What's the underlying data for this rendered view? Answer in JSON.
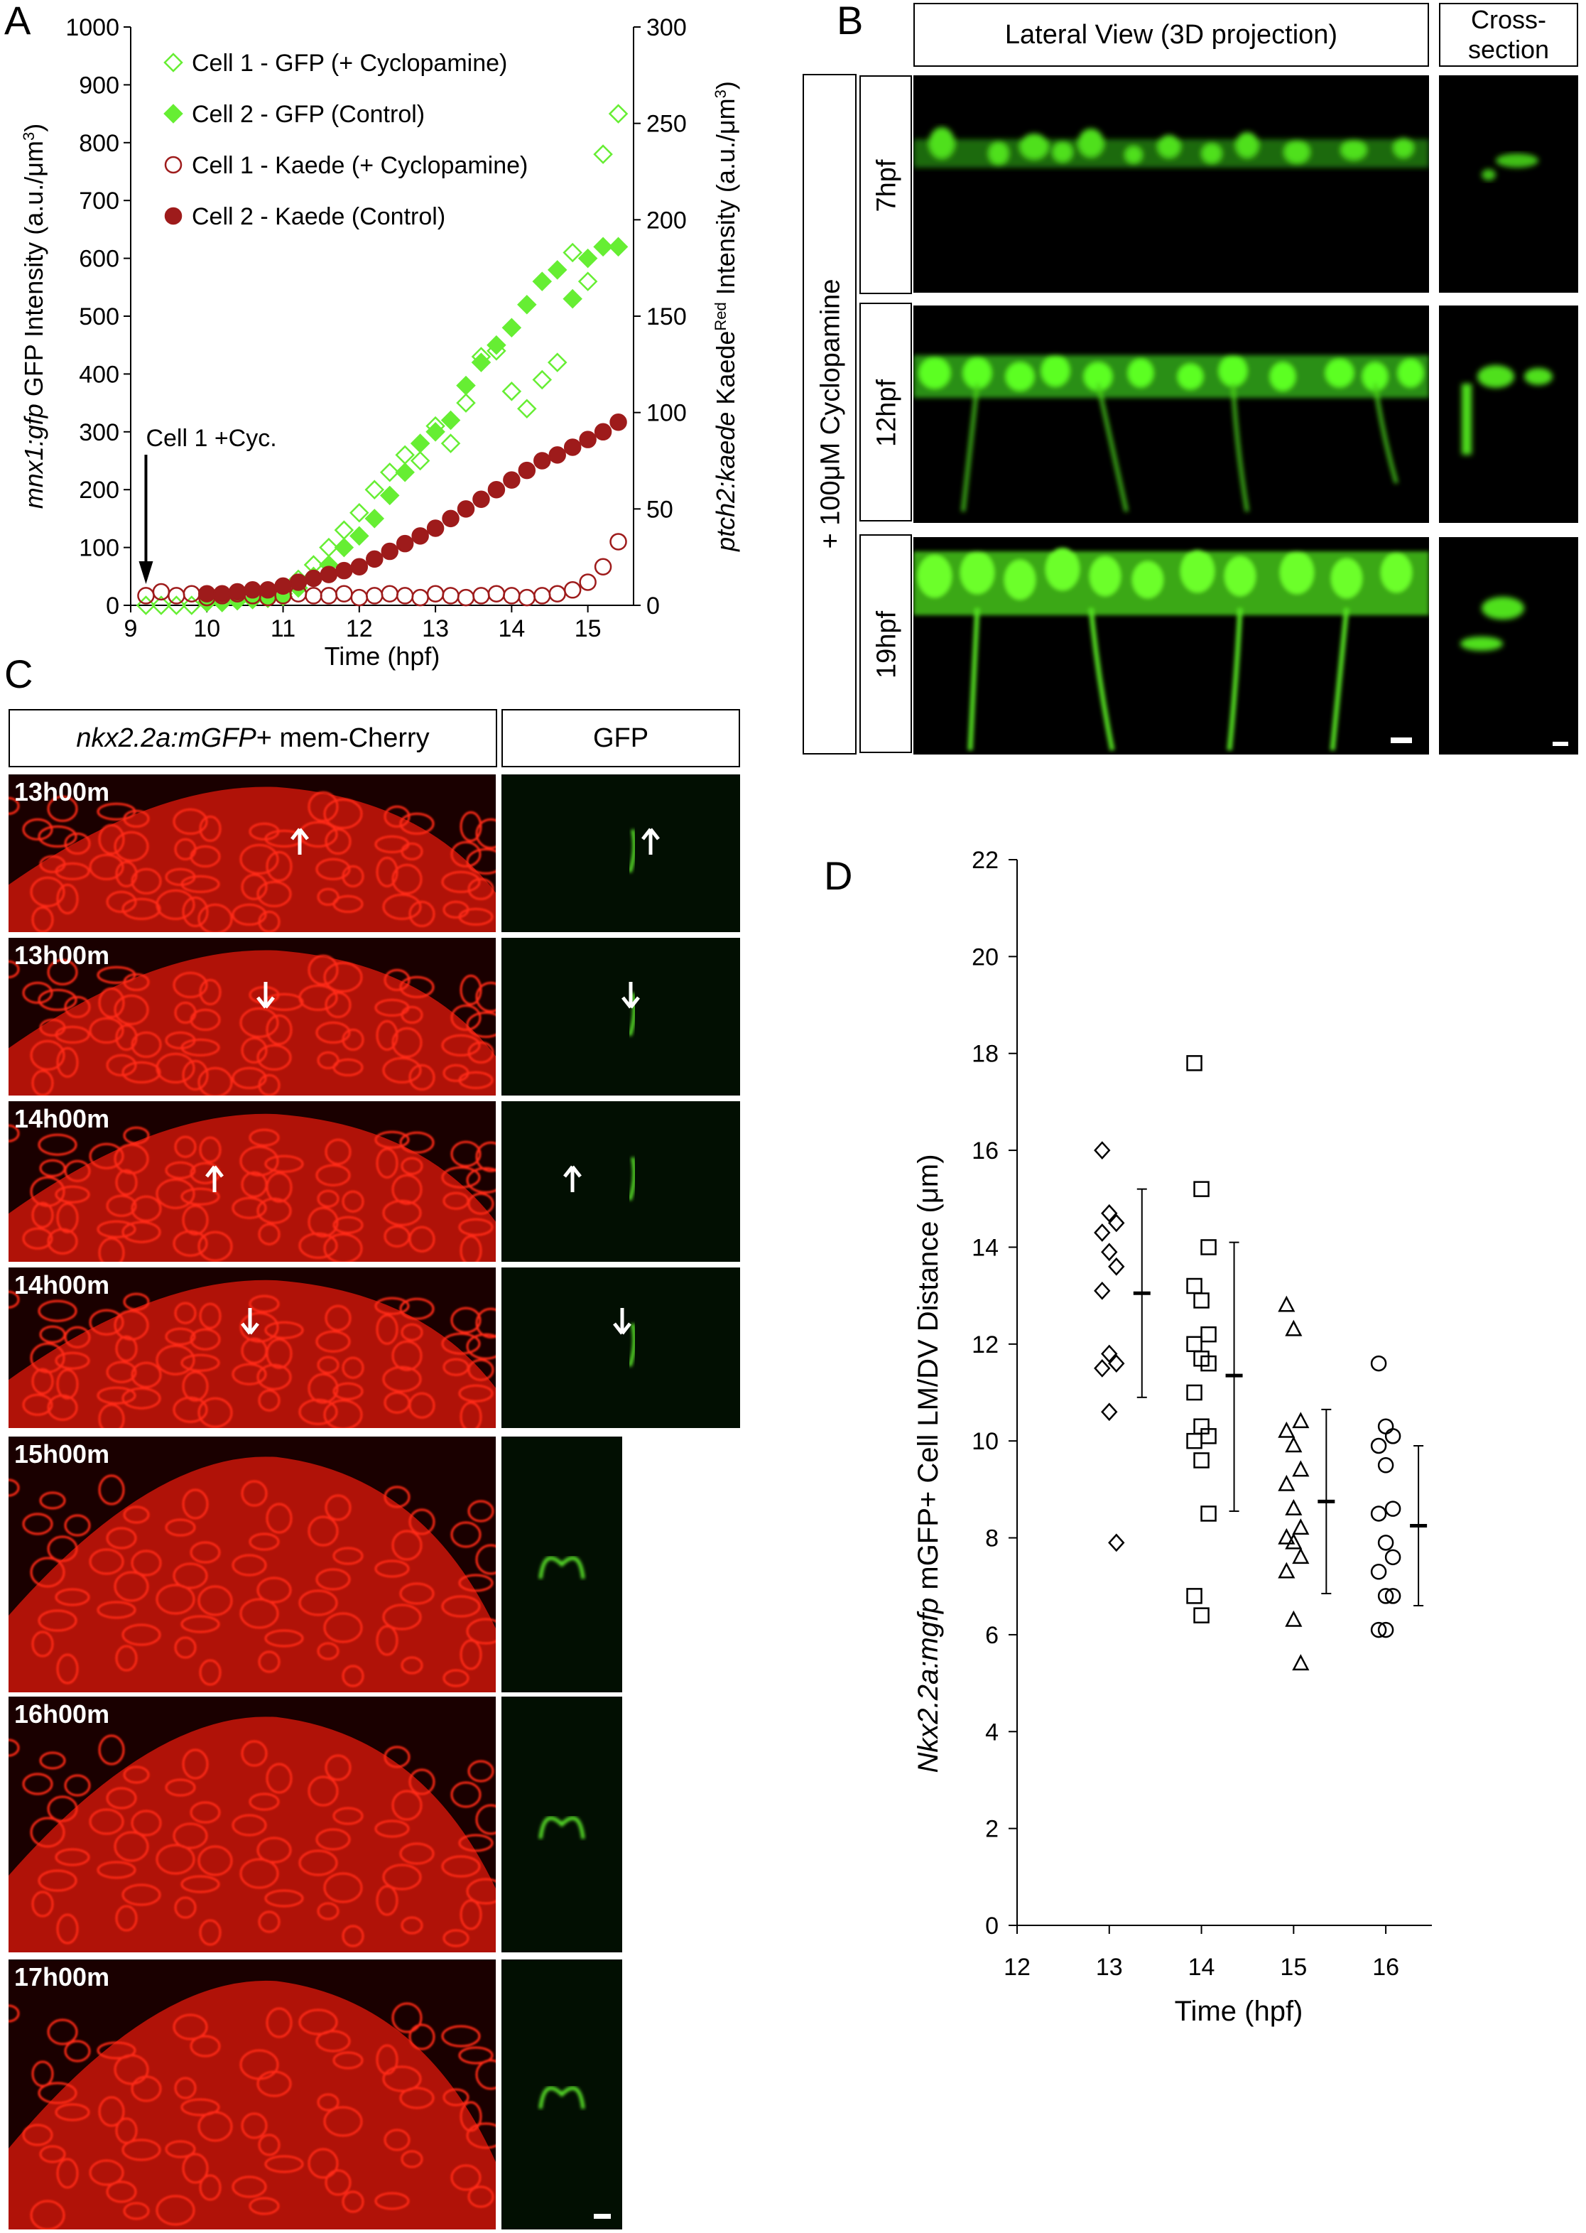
{
  "panels": {
    "a": "A",
    "b": "B",
    "c": "C",
    "d": "D"
  },
  "colors": {
    "gfp": "#66ee33",
    "kaede": "#9e1b1b",
    "cherry": "#e21a10",
    "scope_green": "#6cff2a"
  },
  "chart_data": [
    {
      "panel": "A",
      "type": "scatter",
      "xlabel": "Time (hpf)",
      "ylabel_left_italic": "mnx1:gfp",
      "ylabel_left_rest": " GFP Intensity (a.u./μm",
      "ylabel_left_sup": "3",
      "ylabel_left_end": ")",
      "ylabel_right_italic": "ptch2:kaede",
      "ylabel_right_rest": " Kaede",
      "ylabel_right_sup": "Red",
      "ylabel_right_end": " Intensity (a.u./μm",
      "ylabel_right_sup2": "3",
      "ylabel_right_close": ")",
      "xlim": [
        9,
        15.6
      ],
      "xticks": [
        9,
        10,
        11,
        12,
        13,
        14,
        15
      ],
      "ylim_left": [
        0,
        1000
      ],
      "yticks_left": [
        0,
        100,
        200,
        300,
        400,
        500,
        600,
        700,
        800,
        900,
        1000
      ],
      "ylim_right": [
        0,
        300
      ],
      "yticks_right": [
        0,
        50,
        100,
        150,
        200,
        250,
        300
      ],
      "annotation": {
        "text": "Cell 1 +Cyc.",
        "x": 9.2
      },
      "series": [
        {
          "name": "Cell 1 - GFP (+ Cyclopamine)",
          "marker": "diamond-open",
          "color": "#66ee33",
          "axis": "left",
          "x": [
            9.2,
            9.4,
            9.6,
            9.8,
            10.0,
            10.2,
            10.4,
            10.6,
            10.8,
            11.0,
            11.2,
            11.4,
            11.6,
            11.8,
            12.0,
            12.2,
            12.4,
            12.6,
            12.8,
            13.0,
            13.2,
            13.4,
            13.6,
            13.8,
            14.0,
            14.2,
            14.4,
            14.6,
            14.8,
            15.0,
            15.2,
            15.4
          ],
          "y": [
            0,
            0,
            0,
            0,
            5,
            5,
            8,
            10,
            15,
            20,
            45,
            70,
            100,
            130,
            160,
            200,
            230,
            260,
            250,
            310,
            280,
            350,
            430,
            440,
            370,
            340,
            390,
            420,
            610,
            560,
            780,
            850
          ]
        },
        {
          "name": "Cell 2 - GFP (Control)",
          "marker": "diamond-filled",
          "color": "#66ee33",
          "axis": "left",
          "x": [
            10.0,
            10.2,
            10.4,
            10.6,
            10.8,
            11.0,
            11.2,
            11.4,
            11.6,
            11.8,
            12.0,
            12.2,
            12.4,
            12.6,
            12.8,
            13.0,
            13.2,
            13.4,
            13.6,
            13.8,
            14.0,
            14.2,
            14.4,
            14.6,
            14.8,
            15.0,
            15.2,
            15.4
          ],
          "y": [
            5,
            5,
            8,
            10,
            12,
            15,
            30,
            50,
            70,
            100,
            120,
            150,
            190,
            230,
            280,
            300,
            320,
            380,
            420,
            450,
            480,
            520,
            560,
            580,
            530,
            600,
            620,
            620
          ]
        },
        {
          "name": "Cell 1 - Kaede (+ Cyclopamine)",
          "marker": "circle-open",
          "color": "#9e1b1b",
          "axis": "right",
          "x": [
            9.2,
            9.4,
            9.6,
            9.8,
            10.0,
            10.2,
            10.4,
            10.6,
            10.8,
            11.0,
            11.2,
            11.4,
            11.6,
            11.8,
            12.0,
            12.2,
            12.4,
            12.6,
            12.8,
            13.0,
            13.2,
            13.4,
            13.6,
            13.8,
            14.0,
            14.2,
            14.4,
            14.6,
            14.8,
            15.0,
            15.2,
            15.4
          ],
          "y": [
            5,
            7,
            5,
            6,
            4,
            5,
            6,
            5,
            4,
            5,
            6,
            5,
            5,
            6,
            4,
            5,
            6,
            5,
            4,
            6,
            5,
            4,
            5,
            6,
            5,
            4,
            5,
            6,
            8,
            12,
            20,
            33
          ]
        },
        {
          "name": "Cell 2 - Kaede (Control)",
          "marker": "circle-filled",
          "color": "#9e1b1b",
          "axis": "right",
          "x": [
            10.0,
            10.2,
            10.4,
            10.6,
            10.8,
            11.0,
            11.2,
            11.4,
            11.6,
            11.8,
            12.0,
            12.2,
            12.4,
            12.6,
            12.8,
            13.0,
            13.2,
            13.4,
            13.6,
            13.8,
            14.0,
            14.2,
            14.4,
            14.6,
            14.8,
            15.0,
            15.2,
            15.4
          ],
          "y": [
            6,
            6,
            7,
            8,
            8,
            10,
            12,
            14,
            16,
            18,
            20,
            24,
            28,
            32,
            36,
            40,
            45,
            50,
            55,
            60,
            65,
            70,
            75,
            78,
            82,
            86,
            90,
            95
          ]
        }
      ]
    },
    {
      "panel": "D",
      "type": "scatter",
      "xlabel": "Time (hpf)",
      "ylabel_italic": "Nkx2.2a:mgfp",
      "ylabel_rest": "  mGFP+  Cell  LM/DV  Distance (μm)",
      "xlim": [
        12,
        16.5
      ],
      "xticks": [
        12,
        13,
        14,
        15,
        16
      ],
      "ylim": [
        0,
        22
      ],
      "yticks": [
        0,
        2,
        4,
        6,
        8,
        10,
        12,
        14,
        16,
        18,
        20,
        22
      ],
      "series": [
        {
          "x": 13,
          "marker": "diamond",
          "values": [
            16.0,
            14.7,
            14.5,
            14.3,
            13.9,
            13.6,
            13.1,
            11.8,
            11.6,
            11.5,
            10.6,
            7.9
          ],
          "mean": 13.05,
          "sd_low": 10.9,
          "sd_high": 15.2
        },
        {
          "x": 14,
          "marker": "square",
          "values": [
            17.8,
            15.2,
            14.0,
            13.2,
            12.9,
            12.2,
            12.0,
            11.7,
            11.6,
            11.0,
            10.3,
            10.1,
            10.0,
            9.6,
            8.5,
            6.8,
            6.4
          ],
          "mean": 11.35,
          "sd_low": 8.55,
          "sd_high": 14.1
        },
        {
          "x": 15,
          "marker": "triangle",
          "values": [
            12.8,
            12.3,
            10.4,
            10.2,
            9.9,
            9.4,
            9.1,
            8.6,
            8.2,
            8.0,
            7.9,
            7.6,
            7.3,
            6.3,
            5.4
          ],
          "mean": 8.75,
          "sd_low": 6.85,
          "sd_high": 10.65
        },
        {
          "x": 16,
          "marker": "circle",
          "values": [
            11.6,
            10.3,
            10.1,
            9.9,
            9.5,
            8.6,
            8.5,
            7.9,
            7.6,
            7.3,
            6.8,
            6.8,
            6.1,
            6.1
          ],
          "mean": 8.25,
          "sd_low": 6.6,
          "sd_high": 9.9
        }
      ]
    }
  ],
  "panel_b": {
    "header_lateral": "Lateral View (3D projection)",
    "header_cross_1": "Cross-",
    "header_cross_2": "section",
    "treatment": "+ 100μM Cyclopamine",
    "rows": [
      "7hpf",
      "12hpf",
      "19hpf"
    ]
  },
  "panel_c": {
    "header_merge_italic": "nkx2.2a:mGFP",
    "header_merge_rest": "+ mem-Cherry",
    "header_gfp": "GFP",
    "rows": [
      "13h00m",
      "13h00m",
      "14h00m",
      "14h00m",
      "15h00m",
      "16h00m",
      "17h00m"
    ]
  }
}
